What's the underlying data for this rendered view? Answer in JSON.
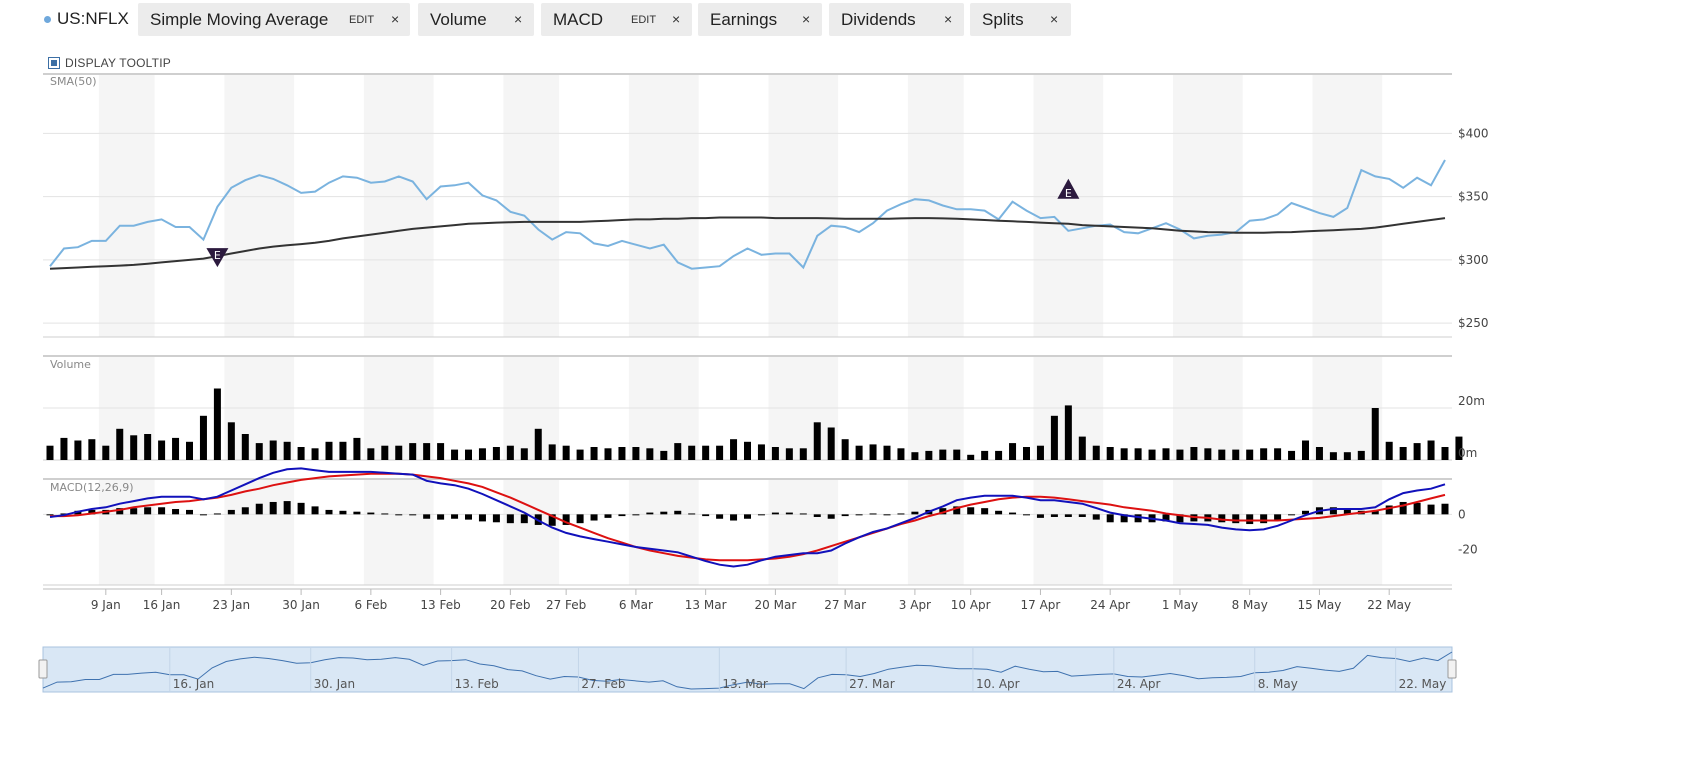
{
  "toolbar": {
    "ticker": "US:NFLX",
    "chips": [
      {
        "label": "Simple Moving Average",
        "edit": "EDIT",
        "close": "×"
      },
      {
        "label": "Volume",
        "close": "×"
      },
      {
        "label": "MACD",
        "edit": "EDIT",
        "close": "×"
      },
      {
        "label": "Earnings",
        "close": "×"
      },
      {
        "label": "Dividends",
        "close": "×"
      },
      {
        "label": "Splits",
        "close": "×"
      }
    ]
  },
  "tooltip_toggle": {
    "label": "DISPLAY TOOLTIP",
    "checked": true
  },
  "chart_data": {
    "type": "line",
    "dates": [
      "2023-01-03",
      "2023-01-04",
      "2023-01-05",
      "2023-01-06",
      "2023-01-09",
      "2023-01-10",
      "2023-01-11",
      "2023-01-12",
      "2023-01-13",
      "2023-01-17",
      "2023-01-18",
      "2023-01-19",
      "2023-01-20",
      "2023-01-23",
      "2023-01-24",
      "2023-01-25",
      "2023-01-26",
      "2023-01-27",
      "2023-01-30",
      "2023-01-31",
      "2023-02-01",
      "2023-02-02",
      "2023-02-03",
      "2023-02-06",
      "2023-02-07",
      "2023-02-08",
      "2023-02-09",
      "2023-02-10",
      "2023-02-13",
      "2023-02-14",
      "2023-02-15",
      "2023-02-16",
      "2023-02-17",
      "2023-02-21",
      "2023-02-22",
      "2023-02-23",
      "2023-02-24",
      "2023-02-27",
      "2023-02-28",
      "2023-03-01",
      "2023-03-02",
      "2023-03-03",
      "2023-03-06",
      "2023-03-07",
      "2023-03-08",
      "2023-03-09",
      "2023-03-10",
      "2023-03-13",
      "2023-03-14",
      "2023-03-15",
      "2023-03-16",
      "2023-03-17",
      "2023-03-20",
      "2023-03-21",
      "2023-03-22",
      "2023-03-23",
      "2023-03-24",
      "2023-03-27",
      "2023-03-28",
      "2023-03-29",
      "2023-03-30",
      "2023-03-31",
      "2023-04-03",
      "2023-04-04",
      "2023-04-05",
      "2023-04-06",
      "2023-04-10",
      "2023-04-11",
      "2023-04-12",
      "2023-04-13",
      "2023-04-14",
      "2023-04-17",
      "2023-04-18",
      "2023-04-19",
      "2023-04-20",
      "2023-04-21",
      "2023-04-24",
      "2023-04-25",
      "2023-04-26",
      "2023-04-27",
      "2023-04-28",
      "2023-05-01",
      "2023-05-02",
      "2023-05-03",
      "2023-05-04",
      "2023-05-05",
      "2023-05-08",
      "2023-05-09",
      "2023-05-10",
      "2023-05-11",
      "2023-05-12",
      "2023-05-15",
      "2023-05-16",
      "2023-05-17",
      "2023-05-18",
      "2023-05-19",
      "2023-05-22",
      "2023-05-23",
      "2023-05-24",
      "2023-05-25",
      "2023-05-26"
    ],
    "price": [
      295,
      309,
      310,
      315,
      315,
      327,
      327,
      330,
      332,
      326,
      326,
      316,
      342,
      357,
      363,
      367,
      364,
      359,
      353,
      354,
      361,
      366,
      365,
      361,
      362,
      366,
      362,
      348,
      358,
      359,
      361,
      351,
      347,
      338,
      335,
      324,
      316,
      322,
      321,
      313,
      311,
      315,
      312,
      309,
      312,
      298,
      293,
      294,
      295,
      303,
      309,
      304,
      305,
      305,
      294,
      319,
      327,
      326,
      322,
      329,
      339,
      344,
      348,
      347,
      343,
      340,
      340,
      339,
      332,
      346,
      339,
      333,
      334,
      323,
      325,
      327,
      328,
      322,
      321,
      325,
      329,
      324,
      317,
      319,
      320,
      322,
      331,
      332,
      336,
      345,
      341,
      337,
      334,
      341,
      371,
      366,
      364,
      357,
      365,
      359,
      379
    ],
    "sma50": [
      293,
      293.5,
      294,
      294.5,
      295,
      295.5,
      296,
      297,
      298,
      299,
      300,
      301,
      303,
      305,
      307,
      309,
      310.5,
      311.5,
      312.5,
      313.5,
      315,
      317,
      318.5,
      320,
      321.5,
      323,
      324.5,
      325.5,
      326.5,
      327.5,
      328.5,
      329,
      329.5,
      329.8,
      330,
      330,
      330,
      330,
      330,
      330.5,
      331,
      331.5,
      332,
      332,
      332.5,
      332.5,
      333,
      333,
      333.5,
      333.5,
      333.5,
      333.5,
      333,
      333,
      333,
      333,
      332.8,
      332.5,
      332.5,
      332.5,
      332.5,
      332.8,
      333,
      333,
      332.8,
      332.5,
      332,
      331.5,
      331,
      330.5,
      330,
      329.5,
      329,
      328.5,
      327.5,
      327,
      326.5,
      326,
      325.5,
      325,
      324,
      323,
      322.5,
      322,
      321.8,
      321.5,
      321.5,
      321.5,
      321.8,
      322,
      322.5,
      323,
      323.5,
      324,
      324.5,
      325.5,
      327,
      328.5,
      330,
      331.5,
      333
    ],
    "volume_m": [
      5.5,
      8.5,
      7.5,
      8,
      5.5,
      12,
      9.5,
      10,
      7.5,
      8.5,
      7,
      17,
      27.5,
      14.5,
      10,
      6.5,
      7.5,
      7,
      5,
      4.5,
      7,
      7,
      8.5,
      4.5,
      5.5,
      5.5,
      6.5,
      6.5,
      6.5,
      4,
      4,
      4.5,
      5,
      5.5,
      4.5,
      12,
      6,
      5.5,
      4,
      5,
      4.5,
      5,
      5,
      4.5,
      3.5,
      6.5,
      5.5,
      5.5,
      5.5,
      8,
      7,
      6,
      5,
      4.5,
      4.5,
      14.5,
      12.5,
      8,
      5.5,
      6,
      5.5,
      4.5,
      3,
      3.5,
      4,
      4,
      2,
      3.5,
      3.5,
      6.5,
      5,
      5.5,
      17,
      21,
      9,
      5.5,
      5,
      4.5,
      4.5,
      4,
      4.5,
      4,
      5,
      4.5,
      4,
      4,
      4,
      4.5,
      4.5,
      3.5,
      7.5,
      5,
      3,
      3,
      3.5,
      20,
      7,
      5,
      6.5,
      7.5,
      5,
      9
    ],
    "macd": [
      -1.5,
      -0.5,
      1.5,
      3,
      4,
      6,
      7.5,
      9,
      10,
      10,
      10,
      8.5,
      10,
      13.5,
      17,
      20.5,
      23.5,
      25.5,
      26,
      25,
      24,
      24,
      24,
      24,
      23.5,
      23,
      22.5,
      19,
      17.5,
      16.5,
      14.5,
      11.5,
      8,
      4.5,
      1,
      -3.5,
      -7.5,
      -10.5,
      -12.5,
      -14,
      -15.5,
      -17,
      -18.5,
      -19.5,
      -20.5,
      -21.5,
      -24,
      -26.5,
      -28.5,
      -29.5,
      -28.5,
      -26,
      -24,
      -23,
      -22,
      -22,
      -20.5,
      -16.5,
      -13,
      -10,
      -8,
      -5,
      -2,
      1.5,
      4.5,
      8,
      9.5,
      10.5,
      10.5,
      10.5,
      9.5,
      8,
      8,
      7,
      6,
      3.5,
      1,
      -0.5,
      -1.5,
      -2.5,
      -3.5,
      -5,
      -5.5,
      -6,
      -7.5,
      -8.5,
      -9,
      -8.5,
      -6.5,
      -3.5,
      -0.5,
      2,
      3,
      3,
      3,
      4,
      8.5,
      12,
      13.5,
      14.5,
      17
    ],
    "signal": [
      -1,
      -1,
      -0.5,
      0.5,
      1.5,
      2.5,
      4,
      5,
      6,
      7,
      7.5,
      8.5,
      9.5,
      11,
      13,
      14.5,
      16.5,
      18,
      19.5,
      20.5,
      21.5,
      22,
      22.5,
      23,
      23,
      23,
      22.5,
      21.5,
      20.5,
      19,
      17.5,
      15.5,
      12.5,
      9.5,
      6,
      2.5,
      -1,
      -4.5,
      -7.5,
      -10.5,
      -13.5,
      -16,
      -18.5,
      -20.5,
      -22,
      -23.5,
      -24.5,
      -25.5,
      -26,
      -26,
      -26,
      -25.5,
      -25,
      -24,
      -22.5,
      -20.5,
      -18,
      -15.5,
      -13,
      -10.5,
      -8,
      -5.5,
      -3.5,
      -1,
      1,
      3.5,
      5.5,
      7,
      8.5,
      9.5,
      10,
      10,
      9.5,
      8.5,
      7.5,
      6.5,
      5.5,
      4,
      3,
      2,
      0.5,
      -0.5,
      -1.5,
      -2,
      -3,
      -3.5,
      -3.5,
      -3.5,
      -3.5,
      -3,
      -2.5,
      -2,
      -1,
      0,
      1,
      2,
      3.5,
      5,
      7,
      9,
      11
    ],
    "earnings_events": [
      {
        "date": "2023-01-20",
        "label": "E",
        "type": "down"
      },
      {
        "date": "2023-04-19",
        "label": "E",
        "type": "up"
      }
    ],
    "price_axis": {
      "ticks": [
        "$400",
        "$350",
        "$300",
        "$250"
      ],
      "values": [
        400,
        350,
        300,
        250
      ],
      "ylim": [
        239,
        447
      ]
    },
    "volume_axis": {
      "ticks": [
        "20m",
        "0m"
      ],
      "values": [
        20,
        0
      ],
      "ylim": [
        0,
        40
      ]
    },
    "macd_axis": {
      "ticks": [
        "0",
        "-20"
      ],
      "values": [
        0,
        -20
      ],
      "ylim": [
        -40,
        20
      ]
    },
    "x_ticks": [
      "9 Jan",
      "16 Jan",
      "23 Jan",
      "30 Jan",
      "6 Feb",
      "13 Feb",
      "20 Feb",
      "27 Feb",
      "6 Mar",
      "13 Mar",
      "20 Mar",
      "27 Mar",
      "3 Apr",
      "10 Apr",
      "17 Apr",
      "24 Apr",
      "1 May",
      "8 May",
      "15 May",
      "22 May"
    ],
    "x_tick_indices": [
      4,
      8,
      13,
      18,
      23,
      28,
      33,
      37,
      42,
      47,
      52,
      57,
      62,
      66,
      71,
      76,
      81,
      86,
      91,
      96
    ],
    "panel_labels": {
      "price": "SMA(50)",
      "volume": "Volume",
      "macd": "MACD(12,26,9)"
    },
    "navigator_ticks": [
      "16. Jan",
      "30. Jan",
      "13. Feb",
      "27. Feb",
      "13. Mar",
      "27. Mar",
      "10. Apr",
      "24. Apr",
      "8. May",
      "22. May"
    ],
    "colors": {
      "price": "#7ab3df",
      "sma": "#333333",
      "macd": "#1111bb",
      "signal": "#dd1111",
      "bars": "#000000",
      "band": "#f5f5f5",
      "navigator": "#d9e7f5",
      "navigator_line": "#3f72af",
      "earnings_marker": "#2c1a3e"
    }
  }
}
